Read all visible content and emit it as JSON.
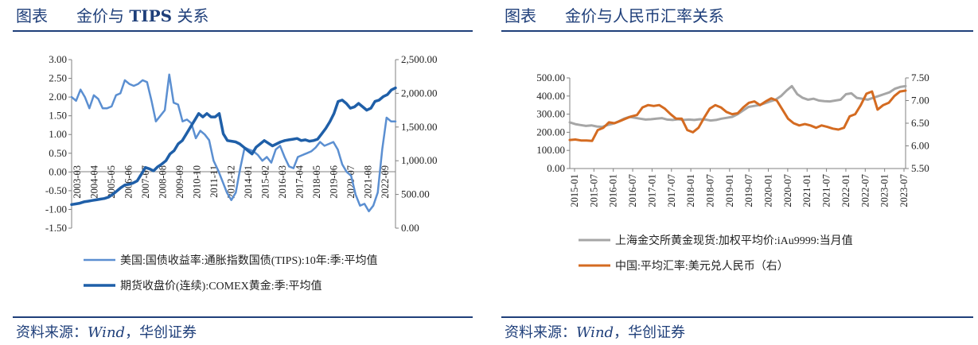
{
  "left": {
    "header": {
      "label": "图表",
      "title_pre": "金价与 ",
      "title_bold": "TIPS",
      "title_post": " 关系"
    },
    "source": {
      "prefix": "资料来源：",
      "wind": "Wind",
      "sep": "，",
      "org": "华创证券"
    },
    "chart_data": {
      "type": "line",
      "x_tick_labels": [
        "2003-03",
        "2004-04",
        "2005-05",
        "2006-06",
        "2007-07",
        "2008-08",
        "2009-09",
        "2010-10",
        "2011-11",
        "2012-12",
        "2014-01",
        "2015-02",
        "2016-03",
        "2017-04",
        "2018-05",
        "2019-06",
        "2020-07",
        "2021-08",
        "2022-09"
      ],
      "y_left": {
        "range": [
          -1.5,
          3.0
        ],
        "ticks": [
          "3.00",
          "2.50",
          "2.00",
          "1.50",
          "1.00",
          "0.50",
          "0.00",
          "-0.50",
          "-1.00",
          "-1.50"
        ]
      },
      "y_right": {
        "range": [
          0,
          2500
        ],
        "ticks": [
          "2,500.00",
          "2,000.00",
          "1,500.00",
          "1,000.00",
          "500.00",
          "0.00"
        ]
      },
      "series": [
        {
          "name": "美国:国债收益率:通胀指数国债(TIPS):10年:季:平均值",
          "axis": "left",
          "color": "#5b8fd1",
          "values": [
            2.0,
            1.9,
            2.2,
            2.0,
            1.7,
            2.05,
            1.95,
            1.7,
            1.7,
            1.75,
            2.05,
            2.1,
            2.45,
            2.35,
            2.3,
            2.35,
            2.45,
            2.4,
            1.9,
            1.35,
            1.5,
            1.65,
            2.6,
            1.85,
            1.8,
            1.35,
            1.4,
            1.3,
            0.9,
            1.1,
            1.0,
            0.85,
            0.3,
            0.05,
            -0.25,
            -0.55,
            -0.75,
            -0.55,
            0.1,
            0.65,
            0.6,
            0.55,
            0.45,
            0.3,
            0.4,
            0.25,
            0.6,
            0.7,
            0.4,
            0.15,
            0.1,
            0.4,
            0.45,
            0.5,
            0.55,
            0.65,
            0.8,
            0.7,
            0.75,
            0.8,
            0.6,
            0.2,
            0.0,
            -0.1,
            -0.6,
            -0.9,
            -0.85,
            -1.05,
            -0.9,
            -0.55,
            0.6,
            1.45,
            1.35,
            1.35
          ]
        },
        {
          "name": "期货收盘价(连续):COMEX黄金:季:平均值",
          "axis": "right",
          "color": "#1f5fa8",
          "values": [
            350,
            360,
            370,
            390,
            400,
            410,
            420,
            430,
            440,
            460,
            500,
            550,
            600,
            640,
            650,
            670,
            700,
            800,
            900,
            880,
            850,
            910,
            950,
            1000,
            1100,
            1150,
            1250,
            1300,
            1400,
            1500,
            1600,
            1700,
            1650,
            1700,
            1650,
            1650,
            1700,
            1400,
            1300,
            1290,
            1280,
            1250,
            1200,
            1150,
            1100,
            1200,
            1250,
            1300,
            1260,
            1220,
            1250,
            1280,
            1300,
            1310,
            1320,
            1330,
            1300,
            1310,
            1290,
            1300,
            1320,
            1400,
            1480,
            1580,
            1700,
            1880,
            1900,
            1850,
            1780,
            1800,
            1850,
            1800,
            1750,
            1780,
            1880,
            1900,
            1950,
            1980,
            2050,
            2080
          ]
        }
      ]
    }
  },
  "right": {
    "header": {
      "label": "图表",
      "title": "金价与人民币汇率关系"
    },
    "source": {
      "prefix": "资料来源：",
      "wind": "Wind",
      "sep": "，",
      "org": "华创证券"
    },
    "chart_data": {
      "type": "line",
      "x_tick_labels": [
        "2015-01",
        "2015-07",
        "2016-01",
        "2016-07",
        "2017-01",
        "2017-07",
        "2018-01",
        "2018-07",
        "2019-01",
        "2019-07",
        "2020-01",
        "2020-07",
        "2021-01",
        "2021-07",
        "2022-01",
        "2022-07",
        "2023-01",
        "2023-07"
      ],
      "y_left": {
        "range": [
          0,
          500
        ],
        "ticks": [
          "500.00",
          "400.00",
          "300.00",
          "200.00",
          "100.00",
          "0.00"
        ]
      },
      "y_right": {
        "range": [
          5.5,
          7.5
        ],
        "ticks": [
          "7.50",
          "7.00",
          "6.50",
          "6.00",
          "5.50"
        ]
      },
      "series": [
        {
          "name": "上海金交所黄金现货:加权平均价:iAu9999:当月值",
          "axis": "left",
          "color": "#a6a6a6",
          "values": [
            255,
            245,
            240,
            235,
            238,
            232,
            230,
            240,
            248,
            260,
            275,
            285,
            280,
            275,
            270,
            272,
            275,
            278,
            270,
            268,
            272,
            268,
            270,
            268,
            272,
            270,
            265,
            268,
            275,
            280,
            285,
            300,
            320,
            340,
            345,
            350,
            360,
            370,
            380,
            400,
            430,
            455,
            410,
            390,
            380,
            385,
            375,
            372,
            370,
            375,
            380,
            410,
            415,
            390,
            385,
            380,
            390,
            400,
            410,
            420,
            440,
            450,
            455
          ]
        },
        {
          "name": "中国:平均汇率:美元兑人民币（右）",
          "axis": "right",
          "color": "#d46b21",
          "values": [
            6.13,
            6.14,
            6.12,
            6.12,
            6.11,
            6.35,
            6.4,
            6.52,
            6.5,
            6.55,
            6.6,
            6.65,
            6.68,
            6.85,
            6.9,
            6.88,
            6.9,
            6.82,
            6.7,
            6.6,
            6.6,
            6.35,
            6.3,
            6.4,
            6.62,
            6.82,
            6.9,
            6.85,
            6.75,
            6.7,
            6.72,
            6.85,
            6.95,
            6.98,
            6.9,
            6.98,
            7.05,
            7.0,
            6.8,
            6.6,
            6.5,
            6.45,
            6.48,
            6.45,
            6.4,
            6.45,
            6.42,
            6.38,
            6.36,
            6.4,
            6.65,
            6.7,
            6.9,
            7.15,
            7.2,
            6.8,
            6.9,
            6.95,
            7.1,
            7.2,
            7.22
          ]
        }
      ]
    }
  }
}
